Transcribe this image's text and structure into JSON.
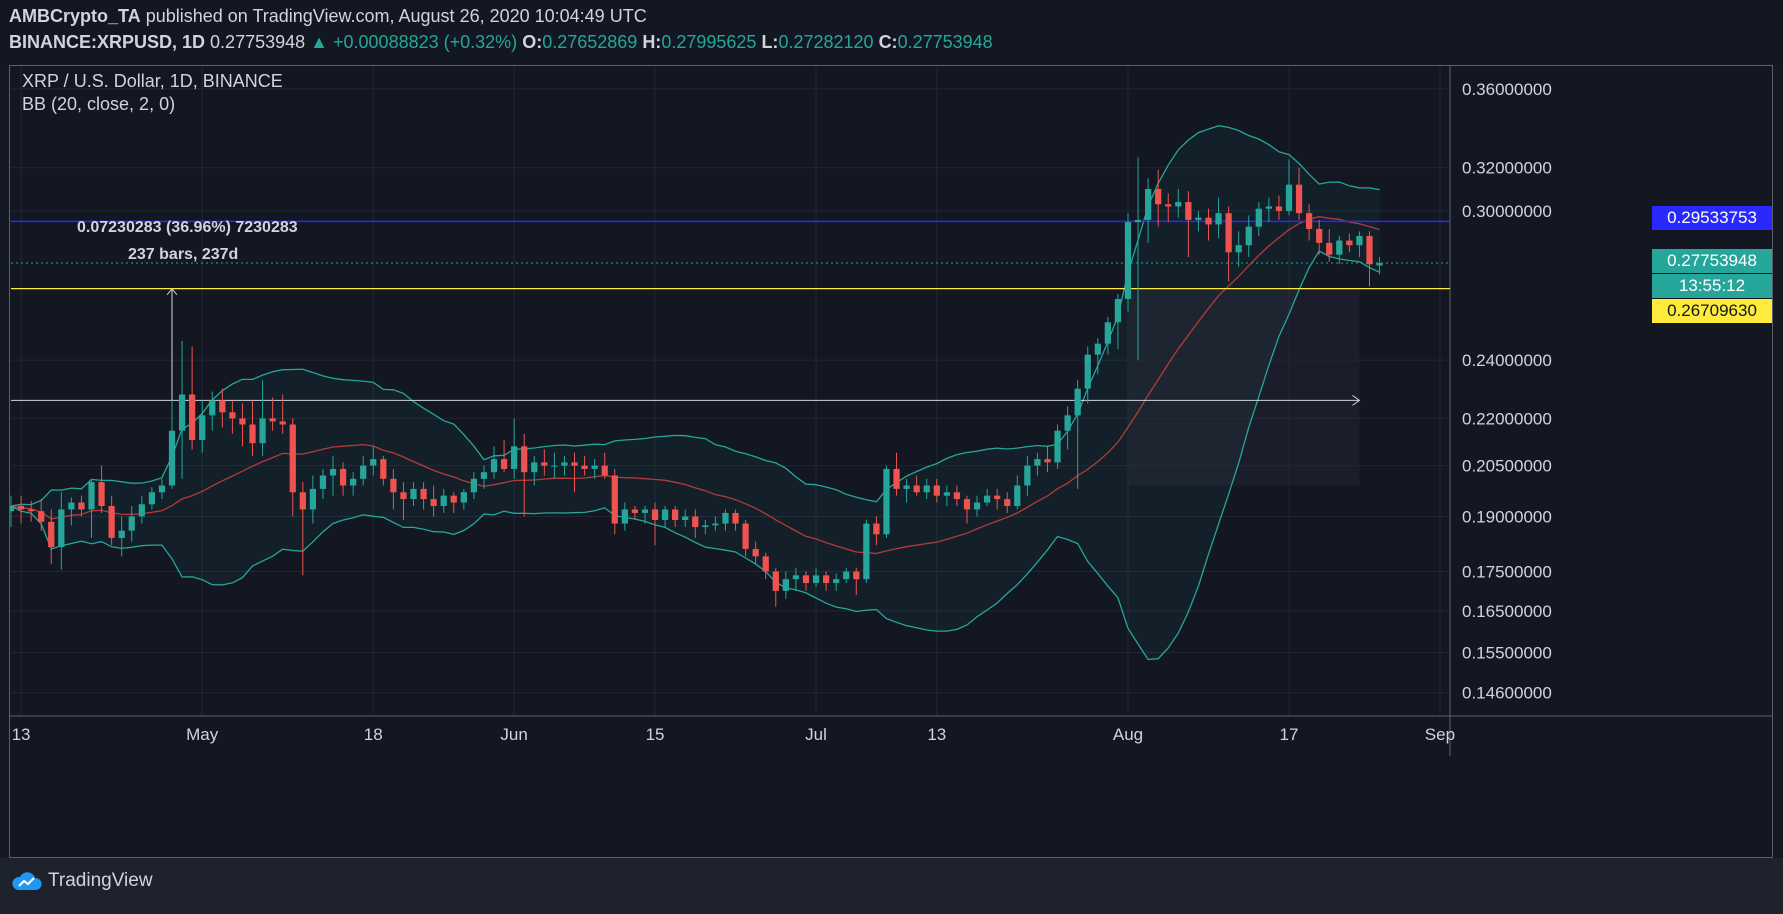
{
  "header": {
    "publisher": "AMBCrypto_TA",
    "published_text": "published on TradingView.com, August 26, 2020 10:04:49 UTC",
    "symbol": "BINANCE:XRPUSD, 1D",
    "last": "0.27753948",
    "change": "+0.00088823 (+0.32%)",
    "o_label": "O:",
    "o_value": "0.27652869",
    "h_label": "H:",
    "h_value": "0.27995625",
    "l_label": "L:",
    "l_value": "0.27282120",
    "c_label": "C:",
    "c_value": "0.27753948"
  },
  "legend": {
    "title": "XRP / U.S. Dollar, 1D, BINANCE",
    "indicator": "BB (20, close, 2, 0)"
  },
  "annotation": {
    "measure_text": "0.07230283 (36.96%) 7230283",
    "bars_text": "237 bars, 237d"
  },
  "price_labels": {
    "blue_line": "0.29533753",
    "last_price": "0.27753948",
    "countdown": "13:55:12",
    "yellow_line": "0.26709630"
  },
  "footer": {
    "brand": "TradingView"
  },
  "colors": {
    "up": "#26a69a",
    "down": "#ef5350",
    "band": "#26a69a",
    "basis": "#b33b3b",
    "blue_line": "#2929ff",
    "yellow_line": "#ffeb3b"
  },
  "chart_data": {
    "type": "candlestick",
    "title": "XRP / U.S. Dollar, 1D, BINANCE",
    "y_axis": {
      "ticks": [
        0.36,
        0.32,
        0.3,
        0.24,
        0.22,
        0.205,
        0.19,
        0.175,
        0.165,
        0.155,
        0.146
      ],
      "tick_labels": [
        "0.36000000",
        "0.32000000",
        "0.30000000",
        "0.24000000",
        "0.22000000",
        "0.20500000",
        "0.19000000",
        "0.17500000",
        "0.16500000",
        "0.15500000",
        "0.14600000"
      ],
      "scale": "log",
      "range": [
        0.141,
        0.372
      ]
    },
    "x_axis": {
      "ticks": [
        "13",
        "May",
        "18",
        "Jun",
        "15",
        "Jul",
        "13",
        "Aug",
        "17",
        "Sep"
      ],
      "tick_dates": [
        "2020-04-13",
        "2020-05-01",
        "2020-05-18",
        "2020-06-01",
        "2020-06-15",
        "2020-07-01",
        "2020-07-13",
        "2020-08-01",
        "2020-08-17",
        "2020-09-01"
      ],
      "range": [
        "2020-04-12",
        "2020-09-02"
      ]
    },
    "horizontal_lines": [
      {
        "price": 0.29533753
      },
      {
        "price": 0.2670963
      }
    ],
    "measure_arrows": [
      {
        "from_date": "2020-04-28",
        "from_price": 0.226,
        "to_date": "2020-04-28",
        "to_price": 0.267
      },
      {
        "from_date": "2020-04-12",
        "from_price": 0.226,
        "to_date": "2020-08-24",
        "to_price": 0.226
      }
    ],
    "background_shade": {
      "from_date": "2020-08-01",
      "to_date": "2020-08-24",
      "price_top": 0.267,
      "price_bottom": 0.199
    },
    "candles": [
      {
        "d": "2020-04-12",
        "o": 0.1915,
        "h": 0.196,
        "l": 0.187,
        "c": 0.193
      },
      {
        "d": "2020-04-13",
        "o": 0.193,
        "h": 0.196,
        "l": 0.188,
        "c": 0.192
      },
      {
        "d": "2020-04-14",
        "o": 0.192,
        "h": 0.1945,
        "l": 0.1885,
        "c": 0.1915
      },
      {
        "d": "2020-04-15",
        "o": 0.1915,
        "h": 0.195,
        "l": 0.186,
        "c": 0.1885
      },
      {
        "d": "2020-04-16",
        "o": 0.1885,
        "h": 0.192,
        "l": 0.177,
        "c": 0.1815
      },
      {
        "d": "2020-04-17",
        "o": 0.1815,
        "h": 0.197,
        "l": 0.1755,
        "c": 0.192
      },
      {
        "d": "2020-04-18",
        "o": 0.192,
        "h": 0.1955,
        "l": 0.1875,
        "c": 0.194
      },
      {
        "d": "2020-04-19",
        "o": 0.194,
        "h": 0.196,
        "l": 0.19,
        "c": 0.192
      },
      {
        "d": "2020-04-20",
        "o": 0.192,
        "h": 0.201,
        "l": 0.184,
        "c": 0.2
      },
      {
        "d": "2020-04-21",
        "o": 0.2,
        "h": 0.205,
        "l": 0.191,
        "c": 0.193
      },
      {
        "d": "2020-04-22",
        "o": 0.193,
        "h": 0.196,
        "l": 0.182,
        "c": 0.184
      },
      {
        "d": "2020-04-23",
        "o": 0.184,
        "h": 0.19,
        "l": 0.179,
        "c": 0.186
      },
      {
        "d": "2020-04-24",
        "o": 0.186,
        "h": 0.193,
        "l": 0.183,
        "c": 0.19
      },
      {
        "d": "2020-04-25",
        "o": 0.19,
        "h": 0.196,
        "l": 0.188,
        "c": 0.1935
      },
      {
        "d": "2020-04-26",
        "o": 0.1935,
        "h": 0.1985,
        "l": 0.192,
        "c": 0.197
      },
      {
        "d": "2020-04-27",
        "o": 0.197,
        "h": 0.201,
        "l": 0.195,
        "c": 0.199
      },
      {
        "d": "2020-04-28",
        "o": 0.199,
        "h": 0.226,
        "l": 0.198,
        "c": 0.216
      },
      {
        "d": "2020-04-29",
        "o": 0.216,
        "h": 0.247,
        "l": 0.201,
        "c": 0.228
      },
      {
        "d": "2020-04-30",
        "o": 0.228,
        "h": 0.245,
        "l": 0.21,
        "c": 0.213
      },
      {
        "d": "2020-05-01",
        "o": 0.213,
        "h": 0.226,
        "l": 0.209,
        "c": 0.221
      },
      {
        "d": "2020-05-02",
        "o": 0.221,
        "h": 0.229,
        "l": 0.216,
        "c": 0.226
      },
      {
        "d": "2020-05-03",
        "o": 0.226,
        "h": 0.23,
        "l": 0.217,
        "c": 0.222
      },
      {
        "d": "2020-05-04",
        "o": 0.222,
        "h": 0.226,
        "l": 0.215,
        "c": 0.22
      },
      {
        "d": "2020-05-05",
        "o": 0.22,
        "h": 0.225,
        "l": 0.211,
        "c": 0.218
      },
      {
        "d": "2020-05-06",
        "o": 0.218,
        "h": 0.226,
        "l": 0.208,
        "c": 0.212
      },
      {
        "d": "2020-05-07",
        "o": 0.212,
        "h": 0.233,
        "l": 0.208,
        "c": 0.22
      },
      {
        "d": "2020-05-08",
        "o": 0.22,
        "h": 0.227,
        "l": 0.216,
        "c": 0.219
      },
      {
        "d": "2020-05-09",
        "o": 0.219,
        "h": 0.228,
        "l": 0.215,
        "c": 0.218
      },
      {
        "d": "2020-05-10",
        "o": 0.218,
        "h": 0.22,
        "l": 0.19,
        "c": 0.197
      },
      {
        "d": "2020-05-11",
        "o": 0.197,
        "h": 0.2,
        "l": 0.174,
        "c": 0.192
      },
      {
        "d": "2020-05-12",
        "o": 0.192,
        "h": 0.202,
        "l": 0.188,
        "c": 0.198
      },
      {
        "d": "2020-05-13",
        "o": 0.198,
        "h": 0.204,
        "l": 0.195,
        "c": 0.202
      },
      {
        "d": "2020-05-14",
        "o": 0.202,
        "h": 0.208,
        "l": 0.196,
        "c": 0.204
      },
      {
        "d": "2020-05-15",
        "o": 0.204,
        "h": 0.206,
        "l": 0.196,
        "c": 0.199
      },
      {
        "d": "2020-05-16",
        "o": 0.199,
        "h": 0.203,
        "l": 0.196,
        "c": 0.201
      },
      {
        "d": "2020-05-17",
        "o": 0.201,
        "h": 0.208,
        "l": 0.199,
        "c": 0.205
      },
      {
        "d": "2020-05-18",
        "o": 0.205,
        "h": 0.211,
        "l": 0.202,
        "c": 0.207
      },
      {
        "d": "2020-05-19",
        "o": 0.207,
        "h": 0.208,
        "l": 0.199,
        "c": 0.201
      },
      {
        "d": "2020-05-20",
        "o": 0.201,
        "h": 0.204,
        "l": 0.192,
        "c": 0.197
      },
      {
        "d": "2020-05-21",
        "o": 0.197,
        "h": 0.2,
        "l": 0.189,
        "c": 0.195
      },
      {
        "d": "2020-05-22",
        "o": 0.195,
        "h": 0.2,
        "l": 0.193,
        "c": 0.198
      },
      {
        "d": "2020-05-23",
        "o": 0.198,
        "h": 0.2,
        "l": 0.192,
        "c": 0.195
      },
      {
        "d": "2020-05-24",
        "o": 0.195,
        "h": 0.199,
        "l": 0.19,
        "c": 0.193
      },
      {
        "d": "2020-05-25",
        "o": 0.193,
        "h": 0.198,
        "l": 0.191,
        "c": 0.196
      },
      {
        "d": "2020-05-26",
        "o": 0.196,
        "h": 0.197,
        "l": 0.191,
        "c": 0.194
      },
      {
        "d": "2020-05-27",
        "o": 0.194,
        "h": 0.198,
        "l": 0.192,
        "c": 0.197
      },
      {
        "d": "2020-05-28",
        "o": 0.197,
        "h": 0.203,
        "l": 0.195,
        "c": 0.201
      },
      {
        "d": "2020-05-29",
        "o": 0.201,
        "h": 0.205,
        "l": 0.198,
        "c": 0.203
      },
      {
        "d": "2020-05-30",
        "o": 0.203,
        "h": 0.211,
        "l": 0.201,
        "c": 0.207
      },
      {
        "d": "2020-05-31",
        "o": 0.207,
        "h": 0.213,
        "l": 0.203,
        "c": 0.204
      },
      {
        "d": "2020-06-01",
        "o": 0.204,
        "h": 0.22,
        "l": 0.201,
        "c": 0.211
      },
      {
        "d": "2020-06-02",
        "o": 0.211,
        "h": 0.215,
        "l": 0.19,
        "c": 0.203
      },
      {
        "d": "2020-06-03",
        "o": 0.203,
        "h": 0.208,
        "l": 0.199,
        "c": 0.206
      },
      {
        "d": "2020-06-04",
        "o": 0.206,
        "h": 0.21,
        "l": 0.202,
        "c": 0.205
      },
      {
        "d": "2020-06-05",
        "o": 0.205,
        "h": 0.209,
        "l": 0.201,
        "c": 0.205
      },
      {
        "d": "2020-06-06",
        "o": 0.205,
        "h": 0.208,
        "l": 0.202,
        "c": 0.206
      },
      {
        "d": "2020-06-07",
        "o": 0.206,
        "h": 0.209,
        "l": 0.197,
        "c": 0.205
      },
      {
        "d": "2020-06-08",
        "o": 0.205,
        "h": 0.208,
        "l": 0.202,
        "c": 0.204
      },
      {
        "d": "2020-06-09",
        "o": 0.204,
        "h": 0.207,
        "l": 0.201,
        "c": 0.205
      },
      {
        "d": "2020-06-10",
        "o": 0.205,
        "h": 0.209,
        "l": 0.201,
        "c": 0.202
      },
      {
        "d": "2020-06-11",
        "o": 0.202,
        "h": 0.204,
        "l": 0.185,
        "c": 0.188
      },
      {
        "d": "2020-06-12",
        "o": 0.188,
        "h": 0.194,
        "l": 0.186,
        "c": 0.192
      },
      {
        "d": "2020-06-13",
        "o": 0.192,
        "h": 0.193,
        "l": 0.189,
        "c": 0.191
      },
      {
        "d": "2020-06-14",
        "o": 0.191,
        "h": 0.193,
        "l": 0.188,
        "c": 0.192
      },
      {
        "d": "2020-06-15",
        "o": 0.192,
        "h": 0.194,
        "l": 0.182,
        "c": 0.189
      },
      {
        "d": "2020-06-16",
        "o": 0.189,
        "h": 0.193,
        "l": 0.187,
        "c": 0.192
      },
      {
        "d": "2020-06-17",
        "o": 0.192,
        "h": 0.193,
        "l": 0.187,
        "c": 0.189
      },
      {
        "d": "2020-06-18",
        "o": 0.189,
        "h": 0.192,
        "l": 0.187,
        "c": 0.19
      },
      {
        "d": "2020-06-19",
        "o": 0.19,
        "h": 0.192,
        "l": 0.184,
        "c": 0.187
      },
      {
        "d": "2020-06-20",
        "o": 0.187,
        "h": 0.189,
        "l": 0.185,
        "c": 0.1875
      },
      {
        "d": "2020-06-21",
        "o": 0.1875,
        "h": 0.19,
        "l": 0.186,
        "c": 0.188
      },
      {
        "d": "2020-06-22",
        "o": 0.188,
        "h": 0.192,
        "l": 0.186,
        "c": 0.191
      },
      {
        "d": "2020-06-23",
        "o": 0.191,
        "h": 0.192,
        "l": 0.186,
        "c": 0.188
      },
      {
        "d": "2020-06-24",
        "o": 0.188,
        "h": 0.189,
        "l": 0.179,
        "c": 0.181
      },
      {
        "d": "2020-06-25",
        "o": 0.181,
        "h": 0.183,
        "l": 0.177,
        "c": 0.179
      },
      {
        "d": "2020-06-26",
        "o": 0.179,
        "h": 0.18,
        "l": 0.173,
        "c": 0.175
      },
      {
        "d": "2020-06-27",
        "o": 0.175,
        "h": 0.176,
        "l": 0.166,
        "c": 0.17
      },
      {
        "d": "2020-06-28",
        "o": 0.17,
        "h": 0.175,
        "l": 0.168,
        "c": 0.173
      },
      {
        "d": "2020-06-29",
        "o": 0.173,
        "h": 0.176,
        "l": 0.17,
        "c": 0.174
      },
      {
        "d": "2020-06-30",
        "o": 0.174,
        "h": 0.175,
        "l": 0.17,
        "c": 0.172
      },
      {
        "d": "2020-07-01",
        "o": 0.172,
        "h": 0.176,
        "l": 0.171,
        "c": 0.174
      },
      {
        "d": "2020-07-02",
        "o": 0.174,
        "h": 0.175,
        "l": 0.17,
        "c": 0.172
      },
      {
        "d": "2020-07-03",
        "o": 0.172,
        "h": 0.1745,
        "l": 0.17,
        "c": 0.173
      },
      {
        "d": "2020-07-04",
        "o": 0.173,
        "h": 0.176,
        "l": 0.172,
        "c": 0.175
      },
      {
        "d": "2020-07-05",
        "o": 0.175,
        "h": 0.176,
        "l": 0.169,
        "c": 0.173
      },
      {
        "d": "2020-07-06",
        "o": 0.173,
        "h": 0.189,
        "l": 0.172,
        "c": 0.188
      },
      {
        "d": "2020-07-07",
        "o": 0.188,
        "h": 0.19,
        "l": 0.182,
        "c": 0.185
      },
      {
        "d": "2020-07-08",
        "o": 0.185,
        "h": 0.205,
        "l": 0.184,
        "c": 0.204
      },
      {
        "d": "2020-07-09",
        "o": 0.204,
        "h": 0.209,
        "l": 0.196,
        "c": 0.198
      },
      {
        "d": "2020-07-10",
        "o": 0.198,
        "h": 0.201,
        "l": 0.194,
        "c": 0.199
      },
      {
        "d": "2020-07-11",
        "o": 0.199,
        "h": 0.202,
        "l": 0.196,
        "c": 0.197
      },
      {
        "d": "2020-07-12",
        "o": 0.197,
        "h": 0.201,
        "l": 0.195,
        "c": 0.199
      },
      {
        "d": "2020-07-13",
        "o": 0.199,
        "h": 0.201,
        "l": 0.194,
        "c": 0.196
      },
      {
        "d": "2020-07-14",
        "o": 0.196,
        "h": 0.199,
        "l": 0.193,
        "c": 0.197
      },
      {
        "d": "2020-07-15",
        "o": 0.197,
        "h": 0.199,
        "l": 0.193,
        "c": 0.195
      },
      {
        "d": "2020-07-16",
        "o": 0.195,
        "h": 0.196,
        "l": 0.188,
        "c": 0.192
      },
      {
        "d": "2020-07-17",
        "o": 0.192,
        "h": 0.196,
        "l": 0.19,
        "c": 0.194
      },
      {
        "d": "2020-07-18",
        "o": 0.194,
        "h": 0.198,
        "l": 0.193,
        "c": 0.196
      },
      {
        "d": "2020-07-19",
        "o": 0.196,
        "h": 0.198,
        "l": 0.192,
        "c": 0.195
      },
      {
        "d": "2020-07-20",
        "o": 0.195,
        "h": 0.197,
        "l": 0.191,
        "c": 0.193
      },
      {
        "d": "2020-07-21",
        "o": 0.193,
        "h": 0.202,
        "l": 0.192,
        "c": 0.199
      },
      {
        "d": "2020-07-22",
        "o": 0.199,
        "h": 0.208,
        "l": 0.196,
        "c": 0.205
      },
      {
        "d": "2020-07-23",
        "o": 0.205,
        "h": 0.209,
        "l": 0.202,
        "c": 0.207
      },
      {
        "d": "2020-07-24",
        "o": 0.207,
        "h": 0.211,
        "l": 0.203,
        "c": 0.206
      },
      {
        "d": "2020-07-25",
        "o": 0.206,
        "h": 0.218,
        "l": 0.204,
        "c": 0.216
      },
      {
        "d": "2020-07-26",
        "o": 0.216,
        "h": 0.224,
        "l": 0.21,
        "c": 0.221
      },
      {
        "d": "2020-07-27",
        "o": 0.221,
        "h": 0.233,
        "l": 0.198,
        "c": 0.23
      },
      {
        "d": "2020-07-28",
        "o": 0.23,
        "h": 0.245,
        "l": 0.225,
        "c": 0.242
      },
      {
        "d": "2020-07-29",
        "o": 0.242,
        "h": 0.248,
        "l": 0.235,
        "c": 0.246
      },
      {
        "d": "2020-07-30",
        "o": 0.246,
        "h": 0.256,
        "l": 0.242,
        "c": 0.254
      },
      {
        "d": "2020-07-31",
        "o": 0.254,
        "h": 0.265,
        "l": 0.244,
        "c": 0.263
      },
      {
        "d": "2020-08-01",
        "o": 0.263,
        "h": 0.299,
        "l": 0.258,
        "c": 0.295
      },
      {
        "d": "2020-08-02",
        "o": 0.295,
        "h": 0.325,
        "l": 0.24,
        "c": 0.296
      },
      {
        "d": "2020-08-03",
        "o": 0.296,
        "h": 0.315,
        "l": 0.286,
        "c": 0.31
      },
      {
        "d": "2020-08-04",
        "o": 0.31,
        "h": 0.319,
        "l": 0.293,
        "c": 0.303
      },
      {
        "d": "2020-08-05",
        "o": 0.303,
        "h": 0.308,
        "l": 0.295,
        "c": 0.302
      },
      {
        "d": "2020-08-06",
        "o": 0.302,
        "h": 0.31,
        "l": 0.297,
        "c": 0.304
      },
      {
        "d": "2020-08-07",
        "o": 0.304,
        "h": 0.309,
        "l": 0.28,
        "c": 0.296
      },
      {
        "d": "2020-08-08",
        "o": 0.296,
        "h": 0.3,
        "l": 0.291,
        "c": 0.297
      },
      {
        "d": "2020-08-09",
        "o": 0.297,
        "h": 0.301,
        "l": 0.287,
        "c": 0.294
      },
      {
        "d": "2020-08-10",
        "o": 0.294,
        "h": 0.306,
        "l": 0.288,
        "c": 0.299
      },
      {
        "d": "2020-08-11",
        "o": 0.299,
        "h": 0.302,
        "l": 0.27,
        "c": 0.282
      },
      {
        "d": "2020-08-12",
        "o": 0.282,
        "h": 0.291,
        "l": 0.276,
        "c": 0.285
      },
      {
        "d": "2020-08-13",
        "o": 0.285,
        "h": 0.298,
        "l": 0.28,
        "c": 0.293
      },
      {
        "d": "2020-08-14",
        "o": 0.293,
        "h": 0.304,
        "l": 0.289,
        "c": 0.301
      },
      {
        "d": "2020-08-15",
        "o": 0.301,
        "h": 0.306,
        "l": 0.295,
        "c": 0.302
      },
      {
        "d": "2020-08-16",
        "o": 0.302,
        "h": 0.307,
        "l": 0.296,
        "c": 0.3
      },
      {
        "d": "2020-08-17",
        "o": 0.3,
        "h": 0.324,
        "l": 0.298,
        "c": 0.312
      },
      {
        "d": "2020-08-18",
        "o": 0.312,
        "h": 0.32,
        "l": 0.296,
        "c": 0.299
      },
      {
        "d": "2020-08-19",
        "o": 0.299,
        "h": 0.303,
        "l": 0.287,
        "c": 0.292
      },
      {
        "d": "2020-08-20",
        "o": 0.292,
        "h": 0.296,
        "l": 0.281,
        "c": 0.286
      },
      {
        "d": "2020-08-21",
        "o": 0.286,
        "h": 0.292,
        "l": 0.278,
        "c": 0.281
      },
      {
        "d": "2020-08-22",
        "o": 0.281,
        "h": 0.289,
        "l": 0.277,
        "c": 0.287
      },
      {
        "d": "2020-08-23",
        "o": 0.287,
        "h": 0.29,
        "l": 0.282,
        "c": 0.285
      },
      {
        "d": "2020-08-24",
        "o": 0.285,
        "h": 0.291,
        "l": 0.28,
        "c": 0.289
      },
      {
        "d": "2020-08-25",
        "o": 0.289,
        "h": 0.291,
        "l": 0.268,
        "c": 0.277
      },
      {
        "d": "2020-08-26",
        "o": 0.2765,
        "h": 0.28,
        "l": 0.2728,
        "c": 0.2775
      }
    ]
  }
}
